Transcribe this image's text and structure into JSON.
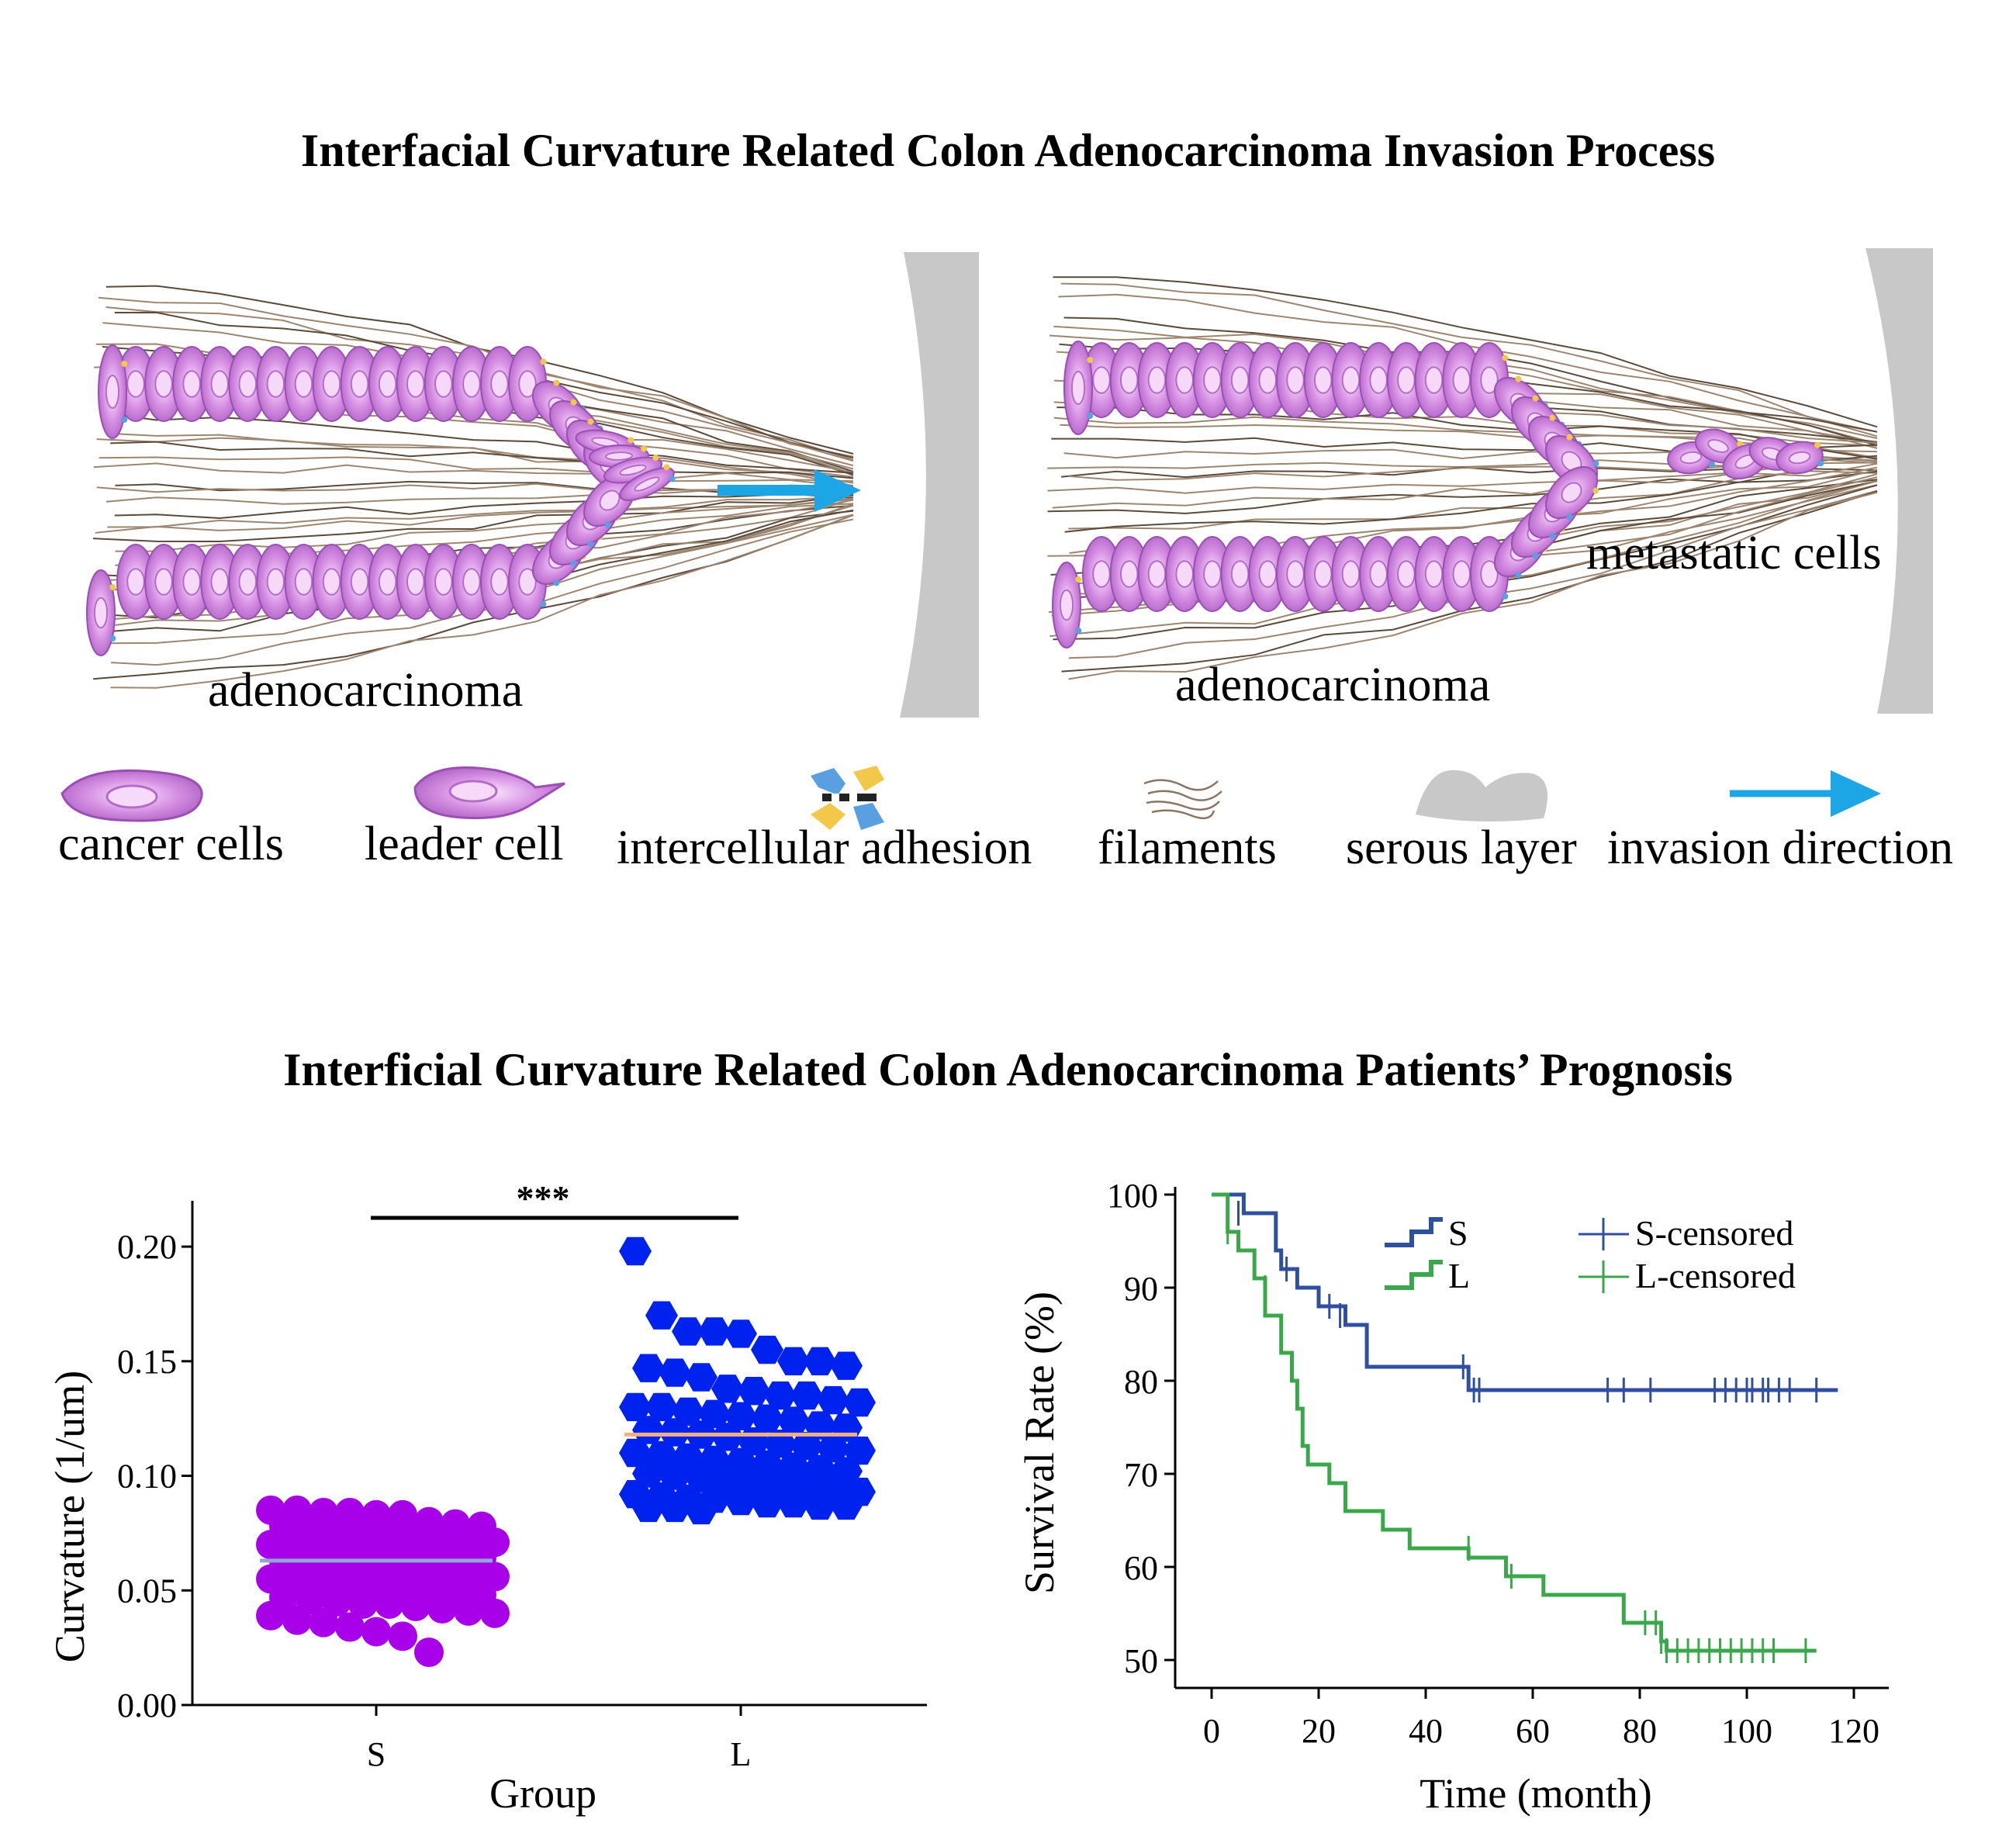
{
  "titles": {
    "top": "Interfacial Curvature Related Colon Adenocarcinoma Invasion Process",
    "bottom": "Interficial Curvature Related Colon Adenocarcinoma Patients’ Prognosis"
  },
  "diagram": {
    "left_label": "adenocarcinoma",
    "right_label": "adenocarcinoma",
    "metastatic_label": "metastatic cells"
  },
  "legend": {
    "items": [
      {
        "key": "cancer",
        "label": "cancer cells",
        "icon": "cancer-cell-icon"
      },
      {
        "key": "leader",
        "label": "leader  cell",
        "icon": "leader-cell-icon"
      },
      {
        "key": "adhesion",
        "label": "intercellular adhesion",
        "icon": "adhesion-icon"
      },
      {
        "key": "filaments",
        "label": "filaments",
        "icon": "filament-icon"
      },
      {
        "key": "serous",
        "label": "serous layer",
        "icon": "serous-layer-icon"
      },
      {
        "key": "invasion",
        "label": "invasion direction",
        "icon": "arrow-right-icon"
      }
    ]
  },
  "colors": {
    "cell": "#c77fd6",
    "cell_light": "#f3d6f7",
    "filament": "#8a7560",
    "serous": "#c8c8c8",
    "arrow": "#1ca6e6",
    "S_dot": "#a800e8",
    "L_dot": "#0022ee",
    "S_mean": "#8fa6d6",
    "L_mean": "#f0b07f",
    "S_line": "#2f4f9f",
    "L_line": "#3aa84a"
  },
  "chart_data": [
    {
      "type": "scatter",
      "xlabel": "Group",
      "ylabel": "Curvature (1/um)",
      "categories": [
        "S",
        "L"
      ],
      "ylim": [
        0,
        0.22
      ],
      "yticks": [
        "0.00",
        "0.05",
        "0.10",
        "0.15",
        "0.20"
      ],
      "significance": "***",
      "series": [
        {
          "name": "S",
          "mean": 0.063,
          "values": [
            0.085,
            0.084,
            0.083,
            0.084,
            0.085,
            0.083,
            0.08,
            0.078,
            0.079,
            0.078,
            0.076,
            0.075,
            0.077,
            0.074,
            0.073,
            0.074,
            0.072,
            0.071,
            0.07,
            0.069,
            0.068,
            0.069,
            0.07,
            0.067,
            0.066,
            0.065,
            0.064,
            0.063,
            0.062,
            0.061,
            0.06,
            0.059,
            0.058,
            0.057,
            0.057,
            0.056,
            0.055,
            0.054,
            0.053,
            0.052,
            0.051,
            0.05,
            0.049,
            0.049,
            0.048,
            0.047,
            0.046,
            0.045,
            0.044,
            0.044,
            0.043,
            0.042,
            0.041,
            0.04,
            0.039,
            0.037,
            0.036,
            0.034,
            0.032,
            0.03,
            0.023
          ]
        },
        {
          "name": "L",
          "mean": 0.118,
          "values": [
            0.198,
            0.17,
            0.163,
            0.163,
            0.162,
            0.155,
            0.15,
            0.15,
            0.148,
            0.147,
            0.145,
            0.143,
            0.138,
            0.137,
            0.135,
            0.135,
            0.133,
            0.132,
            0.13,
            0.13,
            0.128,
            0.127,
            0.126,
            0.125,
            0.124,
            0.122,
            0.121,
            0.12,
            0.119,
            0.118,
            0.117,
            0.115,
            0.114,
            0.113,
            0.112,
            0.111,
            0.11,
            0.109,
            0.108,
            0.107,
            0.106,
            0.105,
            0.104,
            0.103,
            0.102,
            0.101,
            0.1,
            0.099,
            0.098,
            0.097,
            0.096,
            0.095,
            0.094,
            0.093,
            0.092,
            0.091,
            0.09,
            0.09,
            0.089,
            0.088,
            0.088,
            0.087,
            0.087,
            0.086,
            0.086,
            0.085
          ]
        }
      ]
    },
    {
      "type": "line",
      "xlabel": "Time (month)",
      "ylabel": "Survival Rate (%)",
      "xlim": [
        0,
        120
      ],
      "ylim": [
        50,
        100
      ],
      "xticks": [
        0,
        20,
        40,
        60,
        80,
        100,
        120
      ],
      "yticks": [
        50,
        60,
        70,
        80,
        90,
        100
      ],
      "legend": {
        "S": "S",
        "L": "L",
        "S_censored": "S-censored",
        "L_censored": "L-censored"
      },
      "series": [
        {
          "name": "S",
          "steps": [
            [
              0,
              100
            ],
            [
              6,
              98
            ],
            [
              12,
              94
            ],
            [
              13,
              92
            ],
            [
              16,
              90
            ],
            [
              20,
              88
            ],
            [
              25,
              86
            ],
            [
              29,
              81.5
            ],
            [
              48,
              79
            ],
            [
              117,
              79
            ]
          ],
          "censored": [
            [
              5,
              98
            ],
            [
              14,
              92
            ],
            [
              22,
              88
            ],
            [
              24,
              87
            ],
            [
              47,
              81.5
            ],
            [
              49,
              79
            ],
            [
              50,
              79
            ],
            [
              74,
              79
            ],
            [
              77,
              79
            ],
            [
              82,
              79
            ],
            [
              94,
              79
            ],
            [
              96,
              79
            ],
            [
              98,
              79
            ],
            [
              100,
              79
            ],
            [
              101,
              79
            ],
            [
              103,
              79
            ],
            [
              104,
              79
            ],
            [
              106,
              79
            ],
            [
              108,
              79
            ],
            [
              113,
              79
            ]
          ]
        },
        {
          "name": "L",
          "steps": [
            [
              0,
              100
            ],
            [
              3,
              96
            ],
            [
              5,
              94
            ],
            [
              8,
              91
            ],
            [
              10,
              87
            ],
            [
              13,
              83
            ],
            [
              15,
              80
            ],
            [
              16,
              77
            ],
            [
              17,
              73
            ],
            [
              18,
              71
            ],
            [
              22,
              69
            ],
            [
              25,
              66
            ],
            [
              32,
              64
            ],
            [
              37,
              62
            ],
            [
              48,
              61
            ],
            [
              55,
              59
            ],
            [
              62,
              57
            ],
            [
              77,
              54
            ],
            [
              84,
              52
            ],
            [
              85,
              51
            ],
            [
              113,
              51
            ]
          ],
          "censored": [
            [
              3,
              96
            ],
            [
              10,
              90
            ],
            [
              48,
              62
            ],
            [
              56,
              59
            ],
            [
              81,
              54
            ],
            [
              83,
              54
            ],
            [
              84,
              52
            ],
            [
              85,
              51
            ],
            [
              87,
              51
            ],
            [
              89,
              51
            ],
            [
              91,
              51
            ],
            [
              93,
              51
            ],
            [
              95,
              51
            ],
            [
              97,
              51
            ],
            [
              99,
              51
            ],
            [
              101,
              51
            ],
            [
              103,
              51
            ],
            [
              105,
              51
            ],
            [
              111,
              51
            ]
          ]
        }
      ]
    }
  ]
}
